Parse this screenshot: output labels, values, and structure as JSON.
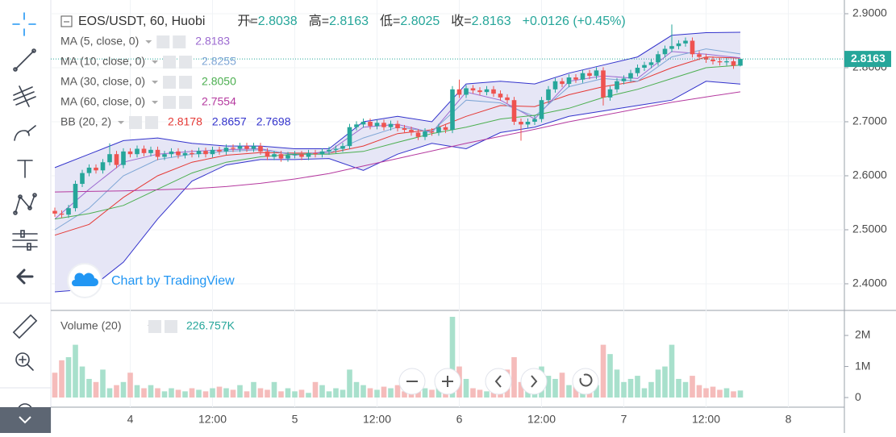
{
  "header": {
    "symbol": "EOS/USDT, 60, Huobi",
    "open_label": "开=",
    "open": 2.8038,
    "high_label": "高=",
    "high": 2.8163,
    "low_label": "低=",
    "low": 2.8025,
    "close_label": "收=",
    "close": 2.8163,
    "change": "+0.0126 (+0.45%)"
  },
  "legend": [
    {
      "label": "MA (5, close, 0)",
      "values": [
        "2.8183"
      ]
    },
    {
      "label": "MA (10, close, 0)",
      "values": [
        "2.8255"
      ]
    },
    {
      "label": "MA (30, close, 0)",
      "values": [
        "2.8050"
      ]
    },
    {
      "label": "MA (60, close, 0)",
      "values": [
        "2.7554"
      ]
    },
    {
      "label": "BB (20, 2)",
      "values": [
        "2.8178",
        "2.8657",
        "2.7698"
      ]
    }
  ],
  "watermark": "Chart by TradingView",
  "chart_data": {
    "type": "candlestick",
    "up_color": "#26a69a",
    "down_color": "#ef5350",
    "ylim": [
      2.3507,
      2.9254
    ],
    "yticks": [
      {
        "value": 2.9,
        "label": "2.9000"
      },
      {
        "value": 2.8,
        "label": "2.8000"
      },
      {
        "value": 2.7,
        "label": "2.7000"
      },
      {
        "value": 2.6,
        "label": "2.6000"
      },
      {
        "value": 2.5,
        "label": "2.5000"
      },
      {
        "value": 2.4,
        "label": "2.4000"
      }
    ],
    "xtick_labels": [
      "4",
      "12:00",
      "5",
      "12:00",
      "6",
      "12:00",
      "7",
      "12:00",
      "8"
    ],
    "candles": [
      [
        2.535,
        2.541,
        2.524,
        2.53
      ],
      [
        2.53,
        2.536,
        2.522,
        2.528
      ],
      [
        2.528,
        2.546,
        2.522,
        2.54
      ],
      [
        2.54,
        2.591,
        2.534,
        2.585
      ],
      [
        2.585,
        2.611,
        2.579,
        2.605
      ],
      [
        2.605,
        2.621,
        2.599,
        2.615
      ],
      [
        2.615,
        2.621,
        2.604,
        2.61
      ],
      [
        2.61,
        2.631,
        2.604,
        2.625
      ],
      [
        2.625,
        2.66,
        2.619,
        2.64
      ],
      [
        2.64,
        2.646,
        2.614,
        2.62
      ],
      [
        2.62,
        2.651,
        2.614,
        2.645
      ],
      [
        2.645,
        2.651,
        2.634,
        2.64
      ],
      [
        2.64,
        2.656,
        2.634,
        2.65
      ],
      [
        2.65,
        2.656,
        2.636,
        2.642
      ],
      [
        2.642,
        2.654,
        2.636,
        2.648
      ],
      [
        2.648,
        2.654,
        2.629,
        2.635
      ],
      [
        2.635,
        2.646,
        2.629,
        2.64
      ],
      [
        2.64,
        2.651,
        2.634,
        2.645
      ],
      [
        2.645,
        2.651,
        2.632,
        2.638
      ],
      [
        2.638,
        2.648,
        2.632,
        2.642
      ],
      [
        2.642,
        2.648,
        2.634,
        2.64
      ],
      [
        2.64,
        2.652,
        2.634,
        2.646
      ],
      [
        2.646,
        2.652,
        2.634,
        2.64
      ],
      [
        2.64,
        2.654,
        2.634,
        2.648
      ],
      [
        2.648,
        2.654,
        2.639,
        2.645
      ],
      [
        2.645,
        2.658,
        2.639,
        2.652
      ],
      [
        2.652,
        2.658,
        2.644,
        2.65
      ],
      [
        2.65,
        2.661,
        2.644,
        2.655
      ],
      [
        2.655,
        2.661,
        2.644,
        2.65
      ],
      [
        2.65,
        2.661,
        2.644,
        2.655
      ],
      [
        2.655,
        2.661,
        2.639,
        2.645
      ],
      [
        2.645,
        2.651,
        2.629,
        2.635
      ],
      [
        2.635,
        2.646,
        2.629,
        2.64
      ],
      [
        2.64,
        2.646,
        2.626,
        2.632
      ],
      [
        2.632,
        2.644,
        2.626,
        2.638
      ],
      [
        2.638,
        2.646,
        2.632,
        2.64
      ],
      [
        2.64,
        2.646,
        2.629,
        2.635
      ],
      [
        2.635,
        2.648,
        2.629,
        2.642
      ],
      [
        2.642,
        2.648,
        2.634,
        2.64
      ],
      [
        2.64,
        2.651,
        2.634,
        2.645
      ],
      [
        2.645,
        2.654,
        2.639,
        2.648
      ],
      [
        2.648,
        2.656,
        2.642,
        2.65
      ],
      [
        2.65,
        2.661,
        2.644,
        2.655
      ],
      [
        2.655,
        2.696,
        2.649,
        2.69
      ],
      [
        2.69,
        2.701,
        2.684,
        2.695
      ],
      [
        2.695,
        2.706,
        2.689,
        2.7
      ],
      [
        2.7,
        2.706,
        2.686,
        2.692
      ],
      [
        2.692,
        2.704,
        2.686,
        2.698
      ],
      [
        2.698,
        2.704,
        2.684,
        2.69
      ],
      [
        2.69,
        2.702,
        2.684,
        2.696
      ],
      [
        2.696,
        2.702,
        2.682,
        2.688
      ],
      [
        2.688,
        2.694,
        2.679,
        2.685
      ],
      [
        2.685,
        2.691,
        2.674,
        2.68
      ],
      [
        2.68,
        2.686,
        2.666,
        2.672
      ],
      [
        2.672,
        2.688,
        2.666,
        2.682
      ],
      [
        2.682,
        2.688,
        2.674,
        2.68
      ],
      [
        2.68,
        2.696,
        2.674,
        2.69
      ],
      [
        2.69,
        2.696,
        2.679,
        2.685
      ],
      [
        2.685,
        2.766,
        2.679,
        2.76
      ],
      [
        2.76,
        2.778,
        2.744,
        2.75
      ],
      [
        2.75,
        2.768,
        2.744,
        2.762
      ],
      [
        2.762,
        2.768,
        2.752,
        2.758
      ],
      [
        2.758,
        2.764,
        2.749,
        2.755
      ],
      [
        2.755,
        2.766,
        2.749,
        2.76
      ],
      [
        2.76,
        2.766,
        2.746,
        2.752
      ],
      [
        2.752,
        2.758,
        2.739,
        2.745
      ],
      [
        2.745,
        2.751,
        2.734,
        2.74
      ],
      [
        2.74,
        2.746,
        2.694,
        2.7
      ],
      [
        2.7,
        2.706,
        2.665,
        2.695
      ],
      [
        2.695,
        2.706,
        2.689,
        2.7
      ],
      [
        2.7,
        2.711,
        2.694,
        2.705
      ],
      [
        2.705,
        2.746,
        2.699,
        2.74
      ],
      [
        2.74,
        2.766,
        2.734,
        2.76
      ],
      [
        2.76,
        2.781,
        2.754,
        2.775
      ],
      [
        2.775,
        2.781,
        2.764,
        2.77
      ],
      [
        2.77,
        2.788,
        2.764,
        2.782
      ],
      [
        2.782,
        2.788,
        2.772,
        2.778
      ],
      [
        2.778,
        2.796,
        2.772,
        2.79
      ],
      [
        2.79,
        2.796,
        2.779,
        2.785
      ],
      [
        2.785,
        2.801,
        2.779,
        2.795
      ],
      [
        2.795,
        2.801,
        2.73,
        2.745
      ],
      [
        2.745,
        2.766,
        2.739,
        2.76
      ],
      [
        2.76,
        2.781,
        2.754,
        2.775
      ],
      [
        2.775,
        2.786,
        2.769,
        2.78
      ],
      [
        2.78,
        2.796,
        2.774,
        2.79
      ],
      [
        2.79,
        2.806,
        2.784,
        2.8
      ],
      [
        2.8,
        2.811,
        2.794,
        2.805
      ],
      [
        2.805,
        2.816,
        2.799,
        2.81
      ],
      [
        2.81,
        2.831,
        2.804,
        2.825
      ],
      [
        2.825,
        2.841,
        2.819,
        2.835
      ],
      [
        2.835,
        2.88,
        2.829,
        2.84
      ],
      [
        2.84,
        2.851,
        2.834,
        2.845
      ],
      [
        2.845,
        2.856,
        2.839,
        2.85
      ],
      [
        2.85,
        2.856,
        2.819,
        2.825
      ],
      [
        2.825,
        2.831,
        2.814,
        2.82
      ],
      [
        2.82,
        2.826,
        2.809,
        2.815
      ],
      [
        2.815,
        2.821,
        2.806,
        2.812
      ],
      [
        2.812,
        2.818,
        2.804,
        2.81
      ],
      [
        2.81,
        2.818,
        2.804,
        2.812
      ],
      [
        2.812,
        2.818,
        2.798,
        2.8038
      ],
      [
        2.8038,
        2.8163,
        2.8025,
        2.8163
      ]
    ],
    "lines": [
      {
        "color": "#9c6ad0",
        "values": [
          2.52,
          2.575,
          2.625,
          2.64,
          2.645,
          2.648,
          2.65,
          2.638,
          2.645,
          2.69,
          2.695,
          2.68,
          2.755,
          2.74,
          2.705,
          2.775,
          2.785,
          2.78,
          2.83,
          2.825,
          2.8183
        ]
      },
      {
        "color": "#7fa6d6",
        "values": [
          2.5,
          2.54,
          2.6,
          2.63,
          2.64,
          2.645,
          2.648,
          2.64,
          2.642,
          2.67,
          2.69,
          2.682,
          2.74,
          2.735,
          2.71,
          2.765,
          2.78,
          2.775,
          2.82,
          2.835,
          2.8255
        ]
      },
      {
        "color": "#4caf50",
        "values": [
          2.52,
          2.53,
          2.545,
          2.575,
          2.605,
          2.625,
          2.635,
          2.64,
          2.64,
          2.645,
          2.662,
          2.678,
          2.69,
          2.705,
          2.712,
          2.725,
          2.745,
          2.76,
          2.78,
          2.8,
          2.805
        ]
      },
      {
        "color": "#b5399f",
        "values": [
          2.57,
          2.571,
          2.572,
          2.574,
          2.576,
          2.58,
          2.586,
          2.594,
          2.604,
          2.618,
          2.632,
          2.646,
          2.66,
          2.673,
          2.686,
          2.7,
          2.712,
          2.724,
          2.736,
          2.746,
          2.7554
        ]
      }
    ],
    "bb": {
      "fill": "#e6e6f6",
      "basis": {
        "color": "#e53935",
        "values": [
          2.49,
          2.51,
          2.56,
          2.6,
          2.625,
          2.638,
          2.643,
          2.642,
          2.642,
          2.655,
          2.678,
          2.685,
          2.71,
          2.73,
          2.728,
          2.75,
          2.765,
          2.775,
          2.8,
          2.82,
          2.8178
        ]
      },
      "upper": {
        "color": "#3333cc",
        "values": [
          2.615,
          2.64,
          2.665,
          2.67,
          2.66,
          2.655,
          2.655,
          2.65,
          2.65,
          2.7,
          2.71,
          2.7,
          2.77,
          2.775,
          2.77,
          2.79,
          2.805,
          2.82,
          2.86,
          2.865,
          2.8657
        ]
      },
      "lower": {
        "color": "#3333cc",
        "values": [
          2.385,
          2.39,
          2.44,
          2.52,
          2.59,
          2.62,
          2.63,
          2.63,
          2.632,
          2.61,
          2.64,
          2.66,
          2.65,
          2.68,
          2.69,
          2.71,
          2.72,
          2.73,
          2.74,
          2.775,
          2.7698
        ]
      }
    },
    "volume": {
      "label": "Volume (20)",
      "value_label": "226.757K",
      "up_color": "#a8e0cc",
      "down_color": "#f5bcbb",
      "ylim": [
        -310000,
        2780000
      ],
      "yticks": [
        0,
        {
          "value": 1000000,
          "label": "1M"
        },
        {
          "value": 2000000,
          "label": "2M"
        }
      ],
      "values": [
        800000,
        1200000,
        1300000,
        1700000,
        1000000,
        600000,
        500000,
        900000,
        300000,
        400000,
        500000,
        800000,
        400000,
        300000,
        400000,
        300000,
        200000,
        300000,
        250000,
        200000,
        300000,
        250000,
        200000,
        300000,
        350000,
        300000,
        250000,
        400000,
        200000,
        500000,
        300000,
        250000,
        500000,
        200000,
        300000,
        200000,
        250000,
        150000,
        500000,
        400000,
        200000,
        300000,
        250000,
        900000,
        500000,
        400000,
        300000,
        250000,
        350000,
        300000,
        400000,
        200000,
        300000,
        500000,
        300000,
        250000,
        400000,
        350000,
        2600000,
        1000000,
        600000,
        300000,
        250000,
        200000,
        300000,
        400000,
        900000,
        1300000,
        500000,
        300000,
        400000,
        1000000,
        700000,
        600000,
        800000,
        400000,
        500000,
        300000,
        600000,
        400000,
        1700000,
        1400000,
        900000,
        500000,
        600000,
        700000,
        300000,
        500000,
        900000,
        1000000,
        1700000,
        600000,
        500000,
        700000,
        400000,
        300000,
        350000,
        250000,
        300000,
        200000,
        226757
      ]
    }
  }
}
